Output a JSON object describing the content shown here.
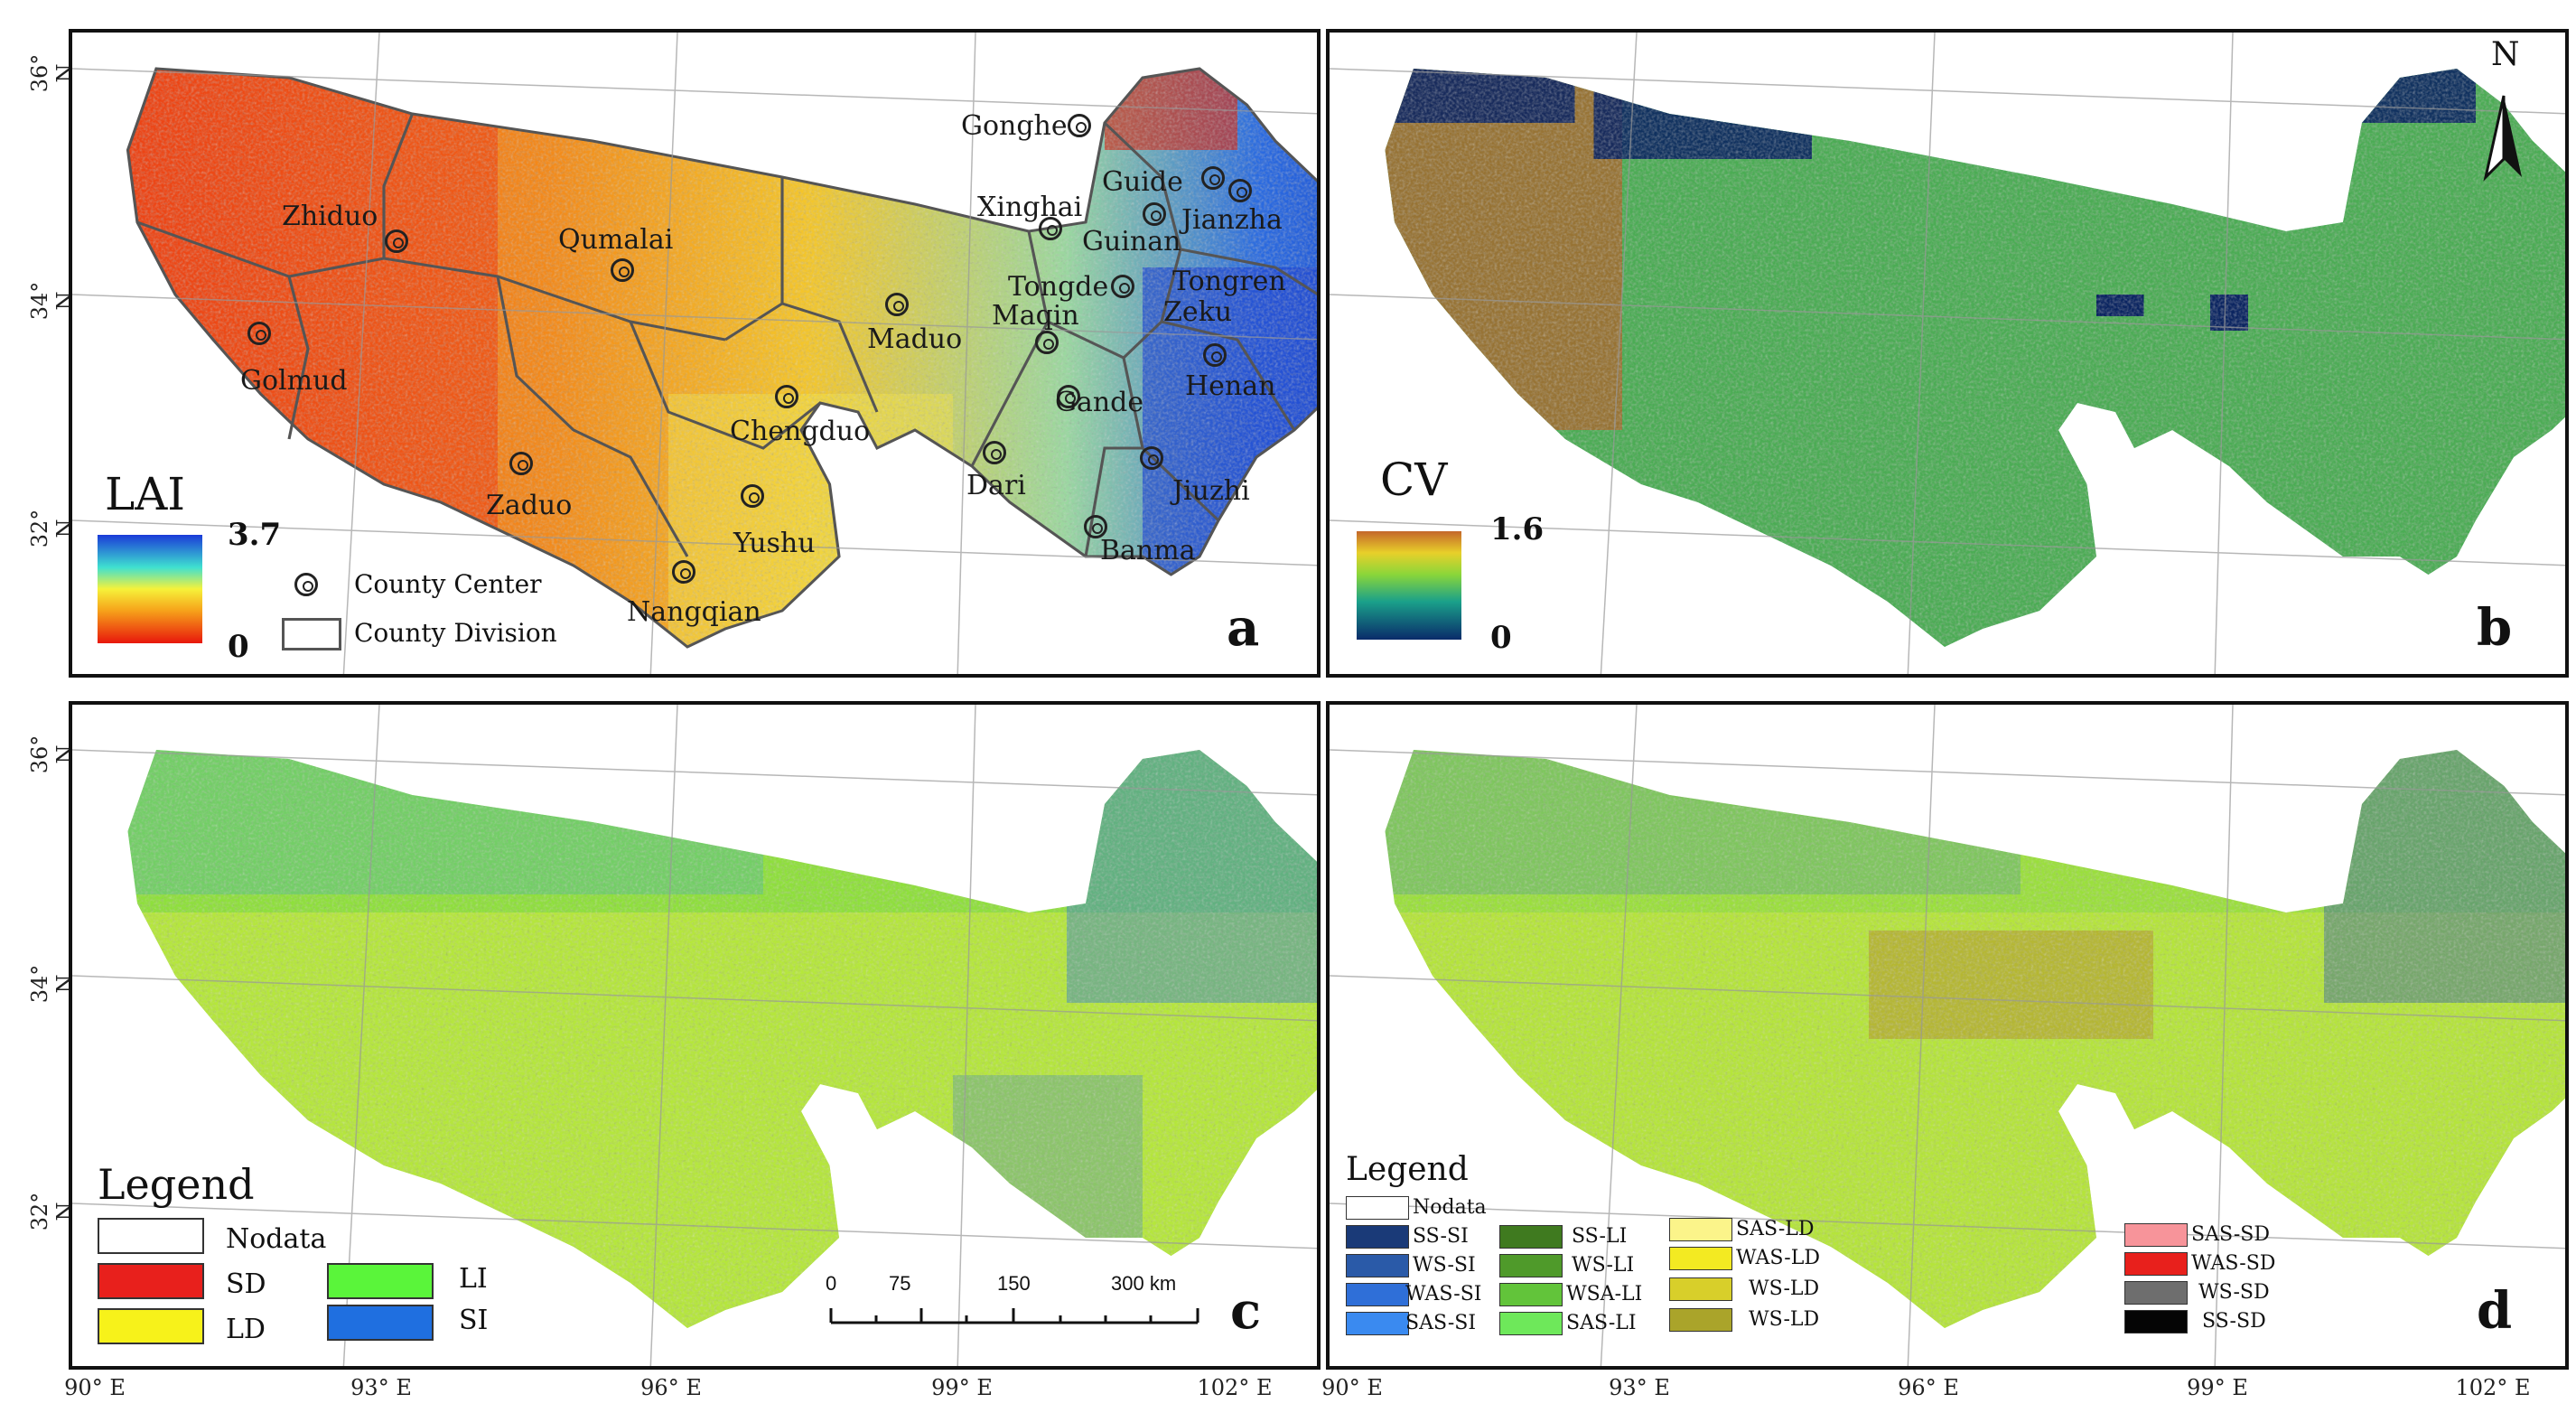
{
  "lat_labels": [
    "36° N",
    "34° N",
    "32° N"
  ],
  "lon_labels": [
    "90° E",
    "93° E",
    "96° E",
    "99° E",
    "102° E"
  ],
  "panel_a": {
    "letter": "a",
    "colorbar_title": "LAI",
    "max": "3.7",
    "min": "0",
    "legend": {
      "center": "County Center",
      "division": "County Division"
    },
    "counties": [
      "Gonghe",
      "Guide",
      "Jianzha",
      "Xinghai",
      "Guinan",
      "Tongren",
      "Tongde",
      "Zeku",
      "Zhiduo",
      "Qumalai",
      "Golmud",
      "Maduo",
      "Maqin",
      "Henan",
      "Gande",
      "Chengduo",
      "Zaduo",
      "Dari",
      "Jiuzhi",
      "Yushu",
      "Banma",
      "Nangqian"
    ]
  },
  "panel_b": {
    "letter": "b",
    "colorbar_title": "CV",
    "max": "1.6",
    "min": "0",
    "north": "N"
  },
  "panel_c": {
    "letter": "c",
    "legend_title": "Legend",
    "items": [
      {
        "label": "Nodata",
        "color": "#ffffff"
      },
      {
        "label": "SD",
        "color": "#e8201c"
      },
      {
        "label": "LD",
        "color": "#f7f21a"
      },
      {
        "label": "LI",
        "color": "#5af53a"
      },
      {
        "label": "SI",
        "color": "#1f6fe0"
      }
    ],
    "scalebar": [
      "0",
      "75",
      "150",
      "300 km"
    ]
  },
  "panel_d": {
    "letter": "d",
    "legend_title": "Legend",
    "nodata": "Nodata",
    "columns": [
      [
        {
          "label": "SS-SI",
          "color": "#1a3a78"
        },
        {
          "label": "WS-SI",
          "color": "#2a5aa8"
        },
        {
          "label": "WAS-SI",
          "color": "#2f6fd8"
        },
        {
          "label": "SAS-SI",
          "color": "#3a8af0"
        }
      ],
      [
        {
          "label": "SS-LI",
          "color": "#3f7a1f"
        },
        {
          "label": "WS-LI",
          "color": "#4f9a2a"
        },
        {
          "label": "WSA-LI",
          "color": "#62c43a"
        },
        {
          "label": "SAS-LI",
          "color": "#6ee85a"
        }
      ],
      [
        {
          "label": "SAS-LD",
          "color": "#fbf48a"
        },
        {
          "label": "WAS-LD",
          "color": "#f3ea22"
        },
        {
          "label": "WS-LD",
          "color": "#d8cf2a"
        },
        {
          "label": "WS-LD",
          "color": "#aaa42a"
        }
      ],
      [
        {
          "label": "SAS-SD",
          "color": "#f7949a"
        },
        {
          "label": "WAS-SD",
          "color": "#e8201c"
        },
        {
          "label": "WS-SD",
          "color": "#6e6e6e"
        },
        {
          "label": "SS-SD",
          "color": "#050505"
        }
      ]
    ]
  }
}
